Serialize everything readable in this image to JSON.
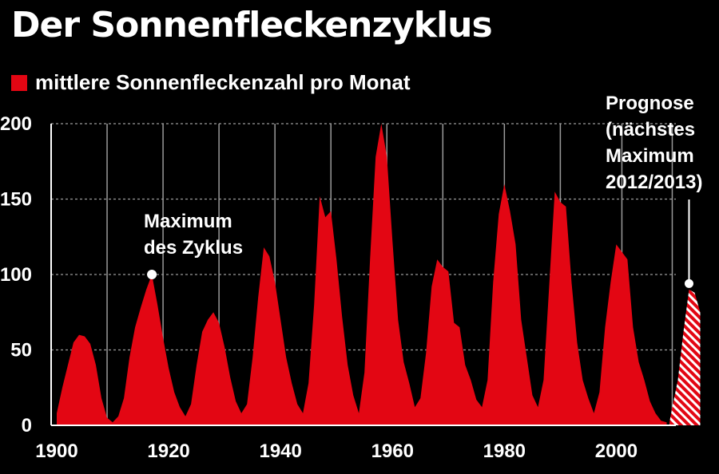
{
  "title": "Der Sonnenfleckenzyklus",
  "legend": {
    "label": "mittlere Sonnenfleckenzahl pro Monat"
  },
  "colors": {
    "series": "#e30613",
    "background": "#000000",
    "text": "#ffffff",
    "grid": "#9a9a9a"
  },
  "chart_data": {
    "type": "area",
    "grid": true,
    "ylim": [
      0,
      200
    ],
    "xlim": [
      1899,
      2015.5
    ],
    "yticks": [
      0,
      50,
      100,
      150,
      200
    ],
    "xticks": [
      1900,
      1920,
      1940,
      1960,
      1980,
      2000
    ],
    "vertical_gridlines_x": [
      1899,
      1909,
      1919,
      1929,
      1939,
      1949,
      1959,
      1969,
      1980,
      1990,
      2001,
      2010
    ],
    "legend": "top-left",
    "series": [
      {
        "name": "mittlere Sonnenfleckenzahl pro Monat",
        "points": [
          [
            1900,
            8
          ],
          [
            1901,
            25
          ],
          [
            1902,
            40
          ],
          [
            1903,
            55
          ],
          [
            1904,
            60
          ],
          [
            1905,
            59
          ],
          [
            1906,
            54
          ],
          [
            1907,
            40
          ],
          [
            1908,
            18
          ],
          [
            1909,
            5
          ],
          [
            1910,
            2
          ],
          [
            1911,
            6
          ],
          [
            1912,
            18
          ],
          [
            1913,
            45
          ],
          [
            1914,
            65
          ],
          [
            1915,
            78
          ],
          [
            1916,
            90
          ],
          [
            1917,
            100
          ],
          [
            1918,
            80
          ],
          [
            1919,
            58
          ],
          [
            1920,
            38
          ],
          [
            1921,
            22
          ],
          [
            1922,
            12
          ],
          [
            1923,
            6
          ],
          [
            1924,
            14
          ],
          [
            1925,
            40
          ],
          [
            1926,
            62
          ],
          [
            1927,
            70
          ],
          [
            1928,
            75
          ],
          [
            1929,
            68
          ],
          [
            1930,
            52
          ],
          [
            1931,
            32
          ],
          [
            1932,
            16
          ],
          [
            1933,
            8
          ],
          [
            1934,
            14
          ],
          [
            1935,
            45
          ],
          [
            1936,
            85
          ],
          [
            1937,
            118
          ],
          [
            1938,
            112
          ],
          [
            1939,
            95
          ],
          [
            1940,
            70
          ],
          [
            1941,
            45
          ],
          [
            1942,
            28
          ],
          [
            1943,
            14
          ],
          [
            1944,
            8
          ],
          [
            1945,
            28
          ],
          [
            1946,
            80
          ],
          [
            1947,
            152
          ],
          [
            1948,
            138
          ],
          [
            1949,
            142
          ],
          [
            1950,
            110
          ],
          [
            1951,
            72
          ],
          [
            1952,
            40
          ],
          [
            1953,
            20
          ],
          [
            1954,
            8
          ],
          [
            1955,
            35
          ],
          [
            1956,
            110
          ],
          [
            1957,
            178
          ],
          [
            1958,
            200
          ],
          [
            1959,
            178
          ],
          [
            1960,
            122
          ],
          [
            1961,
            70
          ],
          [
            1962,
            42
          ],
          [
            1963,
            28
          ],
          [
            1964,
            12
          ],
          [
            1965,
            18
          ],
          [
            1966,
            48
          ],
          [
            1967,
            92
          ],
          [
            1968,
            110
          ],
          [
            1969,
            105
          ],
          [
            1970,
            102
          ],
          [
            1971,
            68
          ],
          [
            1972,
            65
          ],
          [
            1973,
            40
          ],
          [
            1974,
            30
          ],
          [
            1975,
            17
          ],
          [
            1976,
            12
          ],
          [
            1977,
            30
          ],
          [
            1978,
            95
          ],
          [
            1979,
            140
          ],
          [
            1980,
            160
          ],
          [
            1981,
            142
          ],
          [
            1982,
            120
          ],
          [
            1983,
            70
          ],
          [
            1984,
            45
          ],
          [
            1985,
            20
          ],
          [
            1986,
            12
          ],
          [
            1987,
            30
          ],
          [
            1988,
            92
          ],
          [
            1989,
            155
          ],
          [
            1990,
            148
          ],
          [
            1991,
            145
          ],
          [
            1992,
            95
          ],
          [
            1993,
            55
          ],
          [
            1994,
            30
          ],
          [
            1995,
            18
          ],
          [
            1996,
            8
          ],
          [
            1997,
            22
          ],
          [
            1998,
            65
          ],
          [
            1999,
            95
          ],
          [
            2000,
            120
          ],
          [
            2001,
            115
          ],
          [
            2002,
            110
          ],
          [
            2003,
            65
          ],
          [
            2004,
            42
          ],
          [
            2005,
            30
          ],
          [
            2006,
            16
          ],
          [
            2007,
            8
          ],
          [
            2008,
            3
          ],
          [
            2009,
            2
          ]
        ]
      },
      {
        "name": "Prognose (nächstes Maximum 2012/2013)",
        "hatched": true,
        "points": [
          [
            2009.5,
            2
          ],
          [
            2010,
            12
          ],
          [
            2011,
            30
          ],
          [
            2012,
            62
          ],
          [
            2013,
            90
          ],
          [
            2014,
            88
          ],
          [
            2015,
            75
          ]
        ]
      }
    ],
    "annotations": [
      {
        "id": "cycle-max",
        "lines": [
          "Maximum",
          "des Zyklus"
        ],
        "x": 1917,
        "y": 100
      },
      {
        "id": "forecast",
        "lines": [
          "Prognose",
          "(nächstes",
          "Maximum",
          "2012/2013)"
        ],
        "x": 2013,
        "y": 94
      }
    ]
  }
}
